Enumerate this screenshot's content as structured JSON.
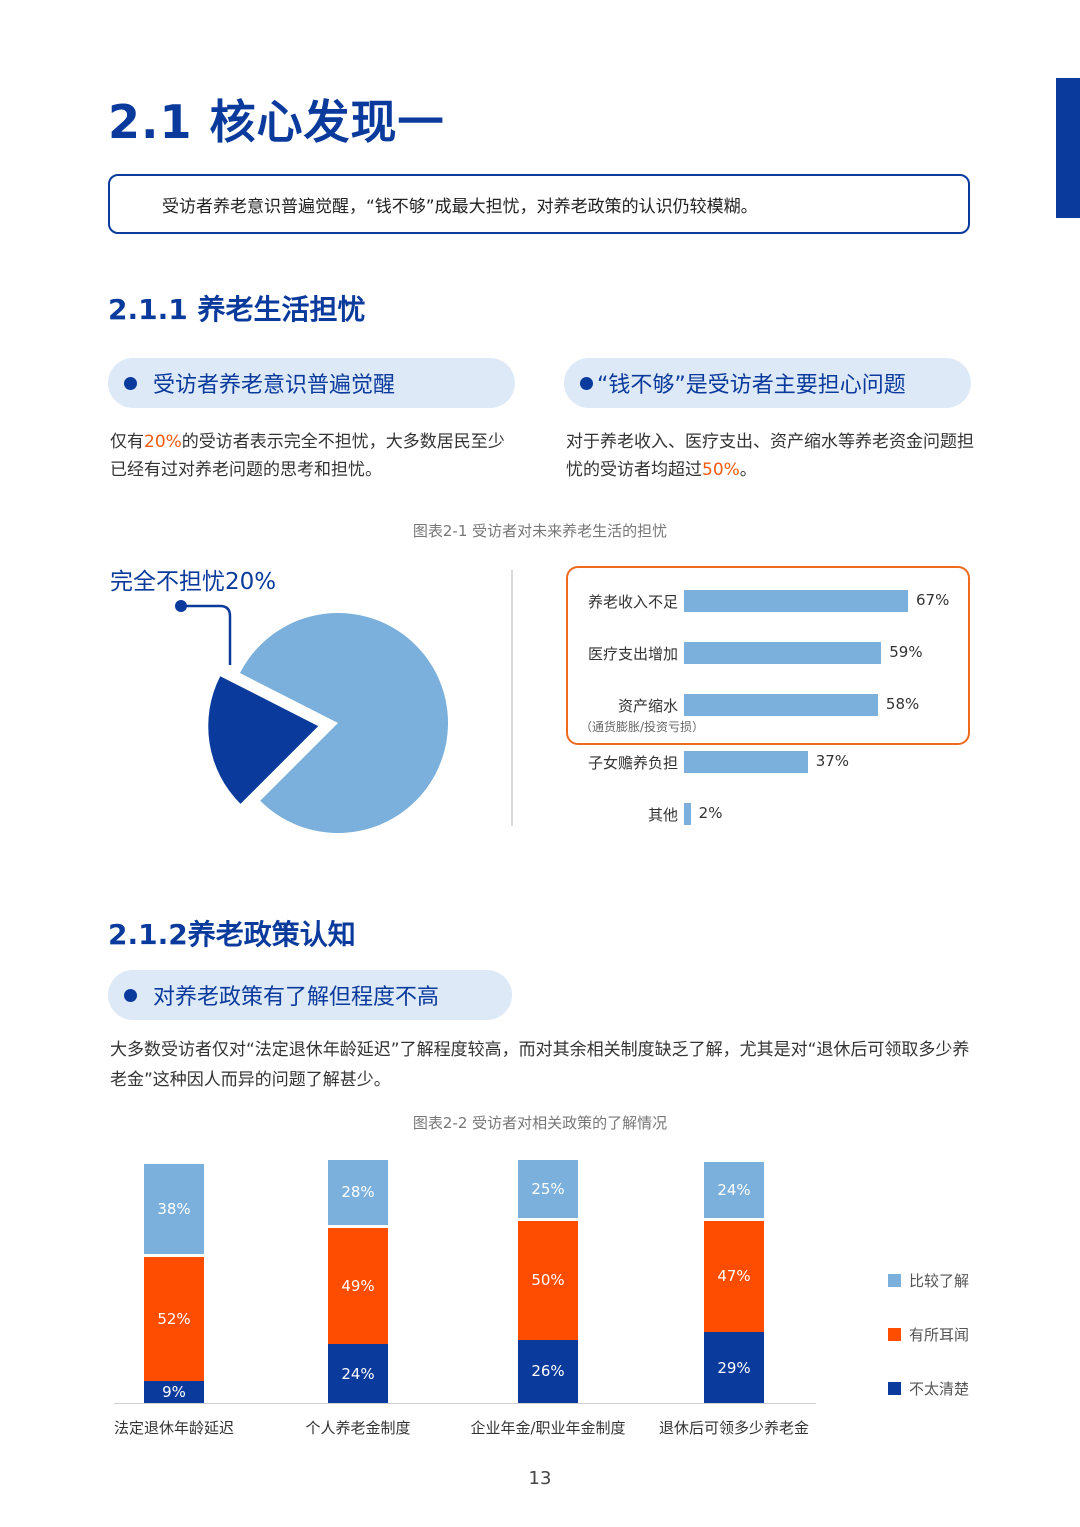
{
  "page": {
    "title": "2.1 核心发现一",
    "summary": "受访者养老意识普遍觉醒，“钱不够”成最大担忧，对养老政策的认识仍较模糊。",
    "page_number": "13"
  },
  "section1": {
    "title": "2.1.1 养老生活担忧",
    "pill_left": "受访者养老意识普遍觉醒",
    "pill_right": "“钱不够”是受访者主要担心问题",
    "para_left": {
      "pre": "仅有",
      "hl": "20%",
      "post": "的受访者表示完全不担忧，大多数居民至少已经有过对养老问题的思考和担忧。"
    },
    "para_right": {
      "pre": "对于养老收入、医疗支出、资产缩水等养老资金问题担忧的受访者均超过",
      "hl": "50%",
      "post": "。"
    },
    "caption": "图表2-1 受访者对未来养老生活的担忧"
  },
  "section2": {
    "title": "2.1.2养老政策认知",
    "pill": "对养老政策有了解但程度不高",
    "para": "大多数受访者仅对“法定退休年龄延迟”了解程度较高，而对其余相关制度缺乏了解，尤其是对“退休后可领取多少养老金”这种因人而异的问题了解甚少。",
    "caption": "图表2-2 受访者对相关政策的了解情况"
  },
  "colors": {
    "navy": "#0a3a9c",
    "light_blue": "#7ab0db",
    "orange": "#ff4d00",
    "highlight": "#f25a0f"
  },
  "chart_data": [
    {
      "type": "pie",
      "slices": [
        {
          "label": "完全不担忧",
          "value": 20,
          "color": "#0a3a9c",
          "exploded": true
        },
        {
          "label": "",
          "value": 80,
          "color": "#7ab0db"
        }
      ],
      "callout": "完全不担忧20%"
    },
    {
      "type": "bar",
      "orientation": "horizontal",
      "categories": [
        "养老收入不足",
        "医疗支出增加",
        "资产缩水",
        "子女赡养负担",
        "其他"
      ],
      "category_notes": [
        "",
        "",
        "（通货膨胀/投资亏损）",
        "",
        ""
      ],
      "values": [
        67,
        59,
        58,
        37,
        2
      ],
      "value_labels": [
        "67%",
        "59%",
        "58%",
        "37%",
        "2%"
      ],
      "highlighted": [
        0,
        1,
        2
      ],
      "xlim": [
        0,
        67
      ]
    },
    {
      "type": "bar",
      "stacked": true,
      "categories": [
        "法定退休年龄延迟",
        "个人养老金制度",
        "企业年金/职业年金制度",
        "退休后可领多少养老金"
      ],
      "series": [
        {
          "name": "不太清楚",
          "values": [
            9,
            24,
            26,
            29
          ],
          "color": "#0a3a9c"
        },
        {
          "name": "有所耳闻",
          "values": [
            52,
            49,
            50,
            47
          ],
          "color": "#ff4d00"
        },
        {
          "name": "比较了解",
          "values": [
            38,
            28,
            25,
            24
          ],
          "color": "#7ab0db"
        }
      ],
      "legend": [
        "比较了解",
        "有所耳闻",
        "不太清楚"
      ],
      "ylim": [
        0,
        100
      ]
    }
  ]
}
